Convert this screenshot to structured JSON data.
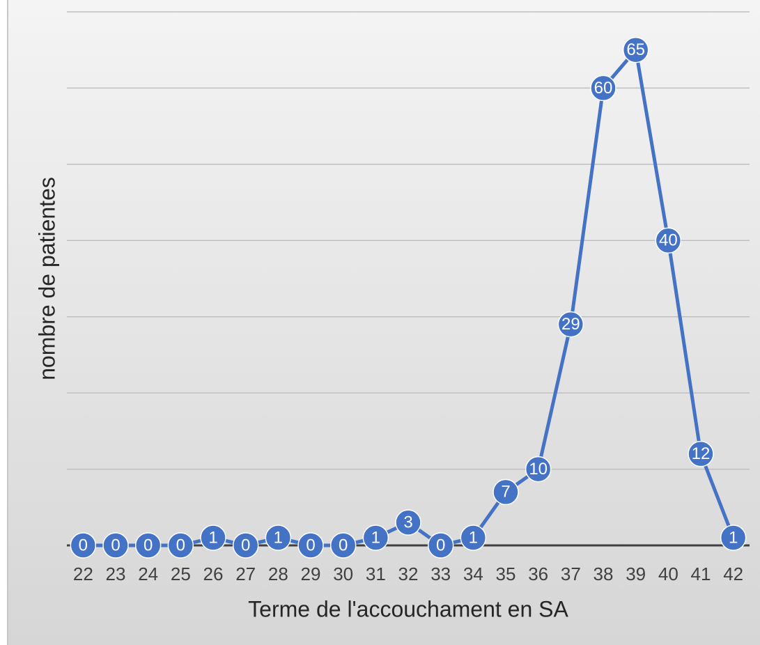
{
  "chart_data": {
    "type": "line",
    "x_label": "Terme de l'accouchament en SA",
    "y_label": "nombre de patientes",
    "categories": [
      "22",
      "23",
      "24",
      "25",
      "26",
      "27",
      "28",
      "29",
      "30",
      "31",
      "32",
      "33",
      "34",
      "35",
      "36",
      "37",
      "38",
      "39",
      "40",
      "41",
      "42"
    ],
    "values": [
      0,
      0,
      0,
      0,
      1,
      0,
      1,
      0,
      0,
      1,
      3,
      0,
      1,
      7,
      10,
      29,
      60,
      65,
      40,
      12,
      1
    ],
    "color": "#4472c4",
    "ylim": [
      0,
      70
    ],
    "yticks": [
      0,
      10,
      20,
      30,
      40,
      50,
      60,
      70
    ],
    "grid": true
  }
}
